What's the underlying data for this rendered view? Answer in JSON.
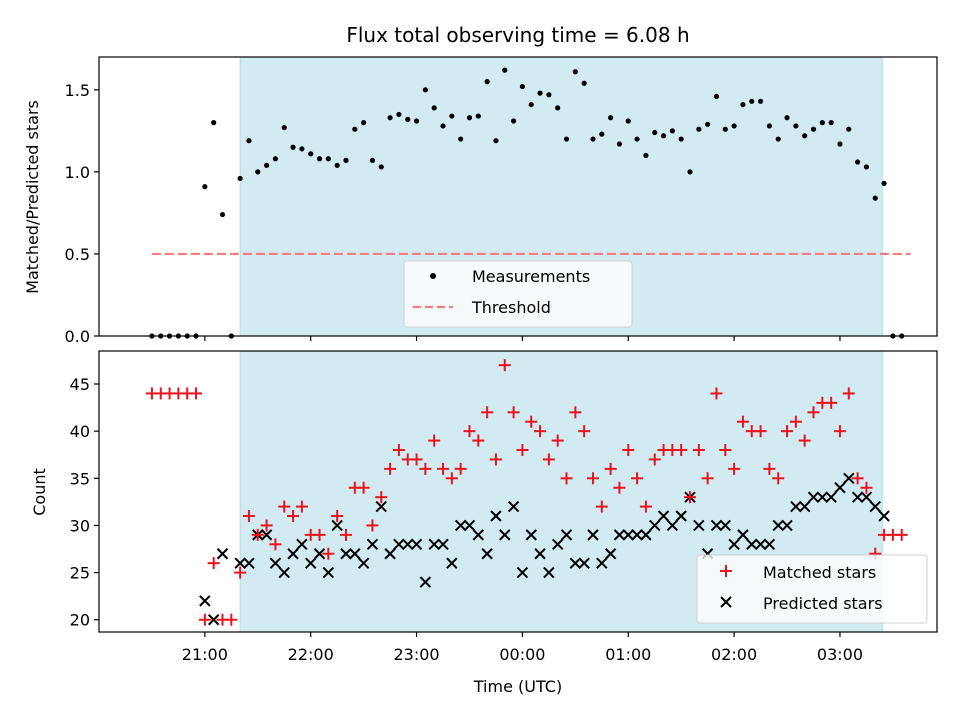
{
  "title": "Flux total observing time = 6.08 h",
  "colors": {
    "shade": "#add8e6",
    "measurement": "#000000",
    "threshold": "#ff7b7b",
    "matched": "#e8141e",
    "predicted": "#000000"
  },
  "chart_data": [
    {
      "type": "scatter",
      "name": "ratio",
      "ylabel": "Matched/Predicted stars",
      "ylim": [
        0,
        1.7
      ],
      "yticks": [
        "0.0",
        "0.5",
        "1.0",
        "1.5"
      ],
      "threshold": 0.5,
      "shaded_window": [
        "21:20",
        "03:24"
      ],
      "legend_position": "lower-center",
      "legend": [
        "Measurements",
        "Threshold"
      ],
      "measurements": [
        [
          "20:30",
          0.0
        ],
        [
          "20:35",
          0.0
        ],
        [
          "20:40",
          0.0
        ],
        [
          "20:45",
          0.0
        ],
        [
          "20:50",
          0.0
        ],
        [
          "20:55",
          0.0
        ],
        [
          "21:00",
          0.91
        ],
        [
          "21:05",
          1.3
        ],
        [
          "21:10",
          0.74
        ],
        [
          "21:15",
          0.0
        ],
        [
          "21:20",
          0.96
        ],
        [
          "21:25",
          1.19
        ],
        [
          "21:30",
          1.0
        ],
        [
          "21:35",
          1.04
        ],
        [
          "21:40",
          1.08
        ],
        [
          "21:45",
          1.27
        ],
        [
          "21:50",
          1.15
        ],
        [
          "21:55",
          1.14
        ],
        [
          "22:00",
          1.11
        ],
        [
          "22:05",
          1.08
        ],
        [
          "22:10",
          1.08
        ],
        [
          "22:15",
          1.04
        ],
        [
          "22:20",
          1.07
        ],
        [
          "22:25",
          1.26
        ],
        [
          "22:30",
          1.3
        ],
        [
          "22:35",
          1.07
        ],
        [
          "22:40",
          1.03
        ],
        [
          "22:45",
          1.33
        ],
        [
          "22:50",
          1.35
        ],
        [
          "22:55",
          1.32
        ],
        [
          "23:00",
          1.31
        ],
        [
          "23:05",
          1.5
        ],
        [
          "23:10",
          1.39
        ],
        [
          "23:15",
          1.28
        ],
        [
          "23:20",
          1.34
        ],
        [
          "23:25",
          1.2
        ],
        [
          "23:30",
          1.33
        ],
        [
          "23:35",
          1.34
        ],
        [
          "23:40",
          1.55
        ],
        [
          "23:45",
          1.19
        ],
        [
          "23:50",
          1.62
        ],
        [
          "23:55",
          1.31
        ],
        [
          "00:00",
          1.52
        ],
        [
          "00:05",
          1.41
        ],
        [
          "00:10",
          1.48
        ],
        [
          "00:15",
          1.47
        ],
        [
          "00:20",
          1.39
        ],
        [
          "00:25",
          1.2
        ],
        [
          "00:30",
          1.61
        ],
        [
          "00:35",
          1.54
        ],
        [
          "00:40",
          1.2
        ],
        [
          "00:45",
          1.23
        ],
        [
          "00:50",
          1.33
        ],
        [
          "00:55",
          1.17
        ],
        [
          "01:00",
          1.31
        ],
        [
          "01:05",
          1.2
        ],
        [
          "01:10",
          1.1
        ],
        [
          "01:15",
          1.24
        ],
        [
          "01:20",
          1.22
        ],
        [
          "01:25",
          1.25
        ],
        [
          "01:30",
          1.2
        ],
        [
          "01:35",
          1.0
        ],
        [
          "01:40",
          1.26
        ],
        [
          "01:45",
          1.29
        ],
        [
          "01:50",
          1.46
        ],
        [
          "01:55",
          1.26
        ],
        [
          "02:00",
          1.28
        ],
        [
          "02:05",
          1.41
        ],
        [
          "02:10",
          1.43
        ],
        [
          "02:15",
          1.43
        ],
        [
          "02:20",
          1.28
        ],
        [
          "02:25",
          1.2
        ],
        [
          "02:30",
          1.33
        ],
        [
          "02:35",
          1.28
        ],
        [
          "02:40",
          1.22
        ],
        [
          "02:45",
          1.26
        ],
        [
          "02:50",
          1.3
        ],
        [
          "02:55",
          1.3
        ],
        [
          "03:00",
          1.17
        ],
        [
          "03:05",
          1.26
        ],
        [
          "03:10",
          1.06
        ],
        [
          "03:15",
          1.03
        ],
        [
          "03:20",
          0.84
        ],
        [
          "03:25",
          0.93
        ],
        [
          "03:30",
          0.0
        ],
        [
          "03:35",
          0.0
        ]
      ]
    },
    {
      "type": "scatter",
      "name": "counts",
      "xlabel": "Time (UTC)",
      "ylabel": "Count",
      "ylim": [
        18.7,
        48.5
      ],
      "yticks": [
        "20",
        "25",
        "30",
        "35",
        "40",
        "45"
      ],
      "xlim": [
        "20:00",
        "03:55"
      ],
      "xticks": [
        "21:00",
        "22:00",
        "23:00",
        "00:00",
        "01:00",
        "02:00",
        "03:00"
      ],
      "shaded_window": [
        "21:20",
        "03:24"
      ],
      "legend_position": "lower-right",
      "series": [
        {
          "name": "Matched stars",
          "marker": "plus",
          "points": [
            [
              "20:30",
              44
            ],
            [
              "20:35",
              44
            ],
            [
              "20:40",
              44
            ],
            [
              "20:45",
              44
            ],
            [
              "20:50",
              44
            ],
            [
              "20:55",
              44
            ],
            [
              "21:00",
              20
            ],
            [
              "21:05",
              26
            ],
            [
              "21:10",
              20
            ],
            [
              "21:15",
              20
            ],
            [
              "21:20",
              25
            ],
            [
              "21:25",
              31
            ],
            [
              "21:30",
              29
            ],
            [
              "21:35",
              30
            ],
            [
              "21:40",
              28
            ],
            [
              "21:45",
              32
            ],
            [
              "21:50",
              31
            ],
            [
              "21:55",
              32
            ],
            [
              "22:00",
              29
            ],
            [
              "22:05",
              29
            ],
            [
              "22:10",
              27
            ],
            [
              "22:15",
              31
            ],
            [
              "22:20",
              29
            ],
            [
              "22:25",
              34
            ],
            [
              "22:30",
              34
            ],
            [
              "22:35",
              30
            ],
            [
              "22:40",
              33
            ],
            [
              "22:45",
              36
            ],
            [
              "22:50",
              38
            ],
            [
              "22:55",
              37
            ],
            [
              "23:00",
              37
            ],
            [
              "23:05",
              36
            ],
            [
              "23:10",
              39
            ],
            [
              "23:15",
              36
            ],
            [
              "23:20",
              35
            ],
            [
              "23:25",
              36
            ],
            [
              "23:30",
              40
            ],
            [
              "23:35",
              39
            ],
            [
              "23:40",
              42
            ],
            [
              "23:45",
              37
            ],
            [
              "23:50",
              47
            ],
            [
              "23:55",
              42
            ],
            [
              "00:00",
              38
            ],
            [
              "00:05",
              41
            ],
            [
              "00:10",
              40
            ],
            [
              "00:15",
              37
            ],
            [
              "00:20",
              39
            ],
            [
              "00:25",
              35
            ],
            [
              "00:30",
              42
            ],
            [
              "00:35",
              40
            ],
            [
              "00:40",
              35
            ],
            [
              "00:45",
              32
            ],
            [
              "00:50",
              36
            ],
            [
              "00:55",
              34
            ],
            [
              "01:00",
              38
            ],
            [
              "01:05",
              35
            ],
            [
              "01:10",
              32
            ],
            [
              "01:15",
              37
            ],
            [
              "01:20",
              38
            ],
            [
              "01:25",
              38
            ],
            [
              "01:30",
              38
            ],
            [
              "01:35",
              33
            ],
            [
              "01:40",
              38
            ],
            [
              "01:45",
              35
            ],
            [
              "01:50",
              44
            ],
            [
              "01:55",
              38
            ],
            [
              "02:00",
              36
            ],
            [
              "02:05",
              41
            ],
            [
              "02:10",
              40
            ],
            [
              "02:15",
              40
            ],
            [
              "02:20",
              36
            ],
            [
              "02:25",
              35
            ],
            [
              "02:30",
              40
            ],
            [
              "02:35",
              41
            ],
            [
              "02:40",
              39
            ],
            [
              "02:45",
              42
            ],
            [
              "02:50",
              43
            ],
            [
              "02:55",
              43
            ],
            [
              "03:00",
              40
            ],
            [
              "03:05",
              44
            ],
            [
              "03:10",
              35
            ],
            [
              "03:15",
              34
            ],
            [
              "03:20",
              27
            ],
            [
              "03:25",
              29
            ],
            [
              "03:30",
              29
            ],
            [
              "03:35",
              29
            ]
          ]
        },
        {
          "name": "Predicted stars",
          "marker": "x",
          "points": [
            [
              "21:00",
              22
            ],
            [
              "21:05",
              20
            ],
            [
              "21:10",
              27
            ],
            [
              "21:20",
              26
            ],
            [
              "21:25",
              26
            ],
            [
              "21:30",
              29
            ],
            [
              "21:35",
              29
            ],
            [
              "21:40",
              26
            ],
            [
              "21:45",
              25
            ],
            [
              "21:50",
              27
            ],
            [
              "21:55",
              28
            ],
            [
              "22:00",
              26
            ],
            [
              "22:05",
              27
            ],
            [
              "22:10",
              25
            ],
            [
              "22:15",
              30
            ],
            [
              "22:20",
              27
            ],
            [
              "22:25",
              27
            ],
            [
              "22:30",
              26
            ],
            [
              "22:35",
              28
            ],
            [
              "22:40",
              32
            ],
            [
              "22:45",
              27
            ],
            [
              "22:50",
              28
            ],
            [
              "22:55",
              28
            ],
            [
              "23:00",
              28
            ],
            [
              "23:05",
              24
            ],
            [
              "23:10",
              28
            ],
            [
              "23:15",
              28
            ],
            [
              "23:20",
              26
            ],
            [
              "23:25",
              30
            ],
            [
              "23:30",
              30
            ],
            [
              "23:35",
              29
            ],
            [
              "23:40",
              27
            ],
            [
              "23:45",
              31
            ],
            [
              "23:50",
              29
            ],
            [
              "23:55",
              32
            ],
            [
              "00:00",
              25
            ],
            [
              "00:05",
              29
            ],
            [
              "00:10",
              27
            ],
            [
              "00:15",
              25
            ],
            [
              "00:20",
              28
            ],
            [
              "00:25",
              29
            ],
            [
              "00:30",
              26
            ],
            [
              "00:35",
              26
            ],
            [
              "00:40",
              29
            ],
            [
              "00:45",
              26
            ],
            [
              "00:50",
              27
            ],
            [
              "00:55",
              29
            ],
            [
              "01:00",
              29
            ],
            [
              "01:05",
              29
            ],
            [
              "01:10",
              29
            ],
            [
              "01:15",
              30
            ],
            [
              "01:20",
              31
            ],
            [
              "01:25",
              30
            ],
            [
              "01:30",
              31
            ],
            [
              "01:35",
              33
            ],
            [
              "01:40",
              30
            ],
            [
              "01:45",
              27
            ],
            [
              "01:50",
              30
            ],
            [
              "01:55",
              30
            ],
            [
              "02:00",
              28
            ],
            [
              "02:05",
              29
            ],
            [
              "02:10",
              28
            ],
            [
              "02:15",
              28
            ],
            [
              "02:20",
              28
            ],
            [
              "02:25",
              30
            ],
            [
              "02:30",
              30
            ],
            [
              "02:35",
              32
            ],
            [
              "02:40",
              32
            ],
            [
              "02:45",
              33
            ],
            [
              "02:50",
              33
            ],
            [
              "02:55",
              33
            ],
            [
              "03:00",
              34
            ],
            [
              "03:05",
              35
            ],
            [
              "03:10",
              33
            ],
            [
              "03:15",
              33
            ],
            [
              "03:20",
              32
            ],
            [
              "03:25",
              31
            ]
          ]
        }
      ]
    }
  ]
}
